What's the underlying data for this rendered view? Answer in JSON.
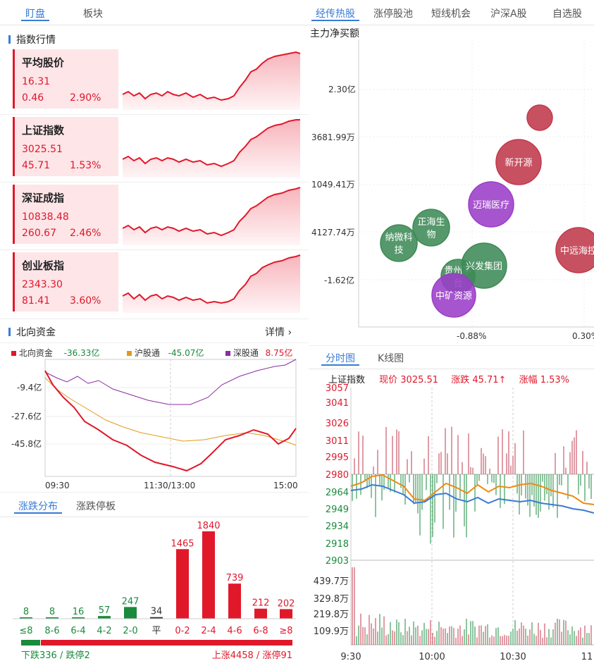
{
  "left_tabs": [
    "盯盘",
    "板块"
  ],
  "index_section": {
    "title": "指数行情",
    "cards": [
      {
        "name": "平均股价",
        "value": "16.31",
        "change": "0.46",
        "pct": "2.90%"
      },
      {
        "name": "上证指数",
        "value": "3025.51",
        "change": "45.71",
        "pct": "1.53%"
      },
      {
        "name": "深证成指",
        "value": "10838.48",
        "change": "260.67",
        "pct": "2.46%"
      },
      {
        "name": "创业板指",
        "value": "2343.30",
        "change": "81.41",
        "pct": "3.60%"
      }
    ]
  },
  "north": {
    "title": "北向资金",
    "detail": "详情",
    "detail_icon": "chevron-right-icon",
    "legend": [
      {
        "label": "北向资金",
        "value": "-36.33亿",
        "color": "#e0182a",
        "value_color": "#1a8a3c"
      },
      {
        "label": "沪股通",
        "value": "-45.07亿",
        "color": "#e39a1b",
        "value_color": "#1a8a3c"
      },
      {
        "label": "深股通",
        "value": "8.75亿",
        "color": "#8a2ca3",
        "value_color": "#e0182a"
      }
    ],
    "y_ticks": [
      "-9.4亿",
      "-27.6亿",
      "-45.8亿"
    ],
    "x_ticks": [
      "09:30",
      "11:30/13:00",
      "15:00"
    ]
  },
  "dist": {
    "tabs": [
      "涨跌分布",
      "涨跌停板"
    ],
    "bars": [
      {
        "label": "≤8",
        "count": "8",
        "value": 8,
        "color": "#1a8a3c"
      },
      {
        "label": "8-6",
        "count": "8",
        "value": 8,
        "color": "#1a8a3c"
      },
      {
        "label": "6-4",
        "count": "16",
        "value": 16,
        "color": "#1a8a3c"
      },
      {
        "label": "4-2",
        "count": "57",
        "value": 57,
        "color": "#1a8a3c"
      },
      {
        "label": "2-0",
        "count": "247",
        "value": 247,
        "color": "#1a8a3c"
      },
      {
        "label": "平",
        "count": "34",
        "value": 34,
        "color": "#333333"
      },
      {
        "label": "0-2",
        "count": "1465",
        "value": 1465,
        "color": "#e0182a"
      },
      {
        "label": "2-4",
        "count": "1840",
        "value": 1840,
        "color": "#e0182a"
      },
      {
        "label": "4-6",
        "count": "739",
        "value": 739,
        "color": "#e0182a"
      },
      {
        "label": "6-8",
        "count": "212",
        "value": 212,
        "color": "#e0182a"
      },
      {
        "label": "≥8",
        "count": "202",
        "value": 202,
        "color": "#e0182a"
      }
    ],
    "down_text": "下跌336 / 跌停2",
    "up_text": "上涨4458 / 涨停91",
    "down_ratio": 0.07
  },
  "hot_tabs": [
    "经传热股",
    "涨停股池",
    "短线机会",
    "沪深A股",
    "自选股"
  ],
  "bubble": {
    "ylabel": "主力净买额",
    "y_ticks": [
      "2.30亿",
      "3681.99万",
      "1049.41万",
      "4127.74万",
      "-1.62亿"
    ],
    "x_ticks": [
      "-0.88%",
      "0.30%"
    ],
    "items": [
      {
        "name": "",
        "color": "#c0394b"
      },
      {
        "name": "新开源",
        "color": "#c0394b"
      },
      {
        "name": "迈瑞医疗",
        "color": "#9b3dc8"
      },
      {
        "name": "中远海控",
        "color": "#c0394b"
      },
      {
        "name": "正海生物",
        "color": "#3e8a56"
      },
      {
        "name": "纳微科技",
        "color": "#3e8a56"
      },
      {
        "name": "兴发集团",
        "color": "#3e8a56"
      },
      {
        "name": "贵州茅台",
        "color": "#3e8a56"
      },
      {
        "name": "中矿资源",
        "color": "#9b3dc8"
      }
    ]
  },
  "intraday": {
    "tabs": [
      "分时图",
      "K线图"
    ],
    "index_name": "上证指数",
    "price_label": "现价 3025.51",
    "change_label": "涨跌 45.71↑",
    "pct_label": "涨幅 1.53%",
    "price_ticks_up": [
      "3057",
      "3041",
      "3026",
      "3011",
      "2995",
      "2980"
    ],
    "price_ticks_down": [
      "2964",
      "2949",
      "2934",
      "2918",
      "2903"
    ],
    "vol_ticks": [
      "439.7万",
      "329.8万",
      "219.8万",
      "109.9万"
    ],
    "x_ticks": [
      "9:30",
      "10:00",
      "10:30",
      "11"
    ]
  }
}
